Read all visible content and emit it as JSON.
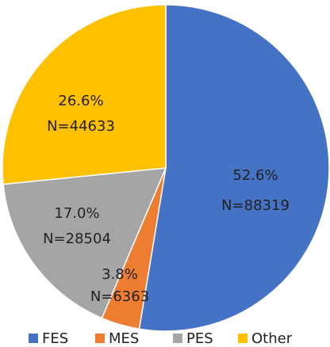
{
  "chart_data": {
    "type": "pie",
    "categories": [
      "FES",
      "MES",
      "PES",
      "Other"
    ],
    "values": [
      52.6,
      3.8,
      17.0,
      26.6
    ],
    "value_labels": [
      "52.6%",
      "3.8%",
      "17.0%",
      "26.6%"
    ],
    "count_labels": [
      "N=88319",
      "N=6363",
      "N=28504",
      "N=44633"
    ],
    "colors": [
      "#4472c4",
      "#ed7d31",
      "#a5a5a5",
      "#ffc000"
    ],
    "legend": "bottom"
  }
}
